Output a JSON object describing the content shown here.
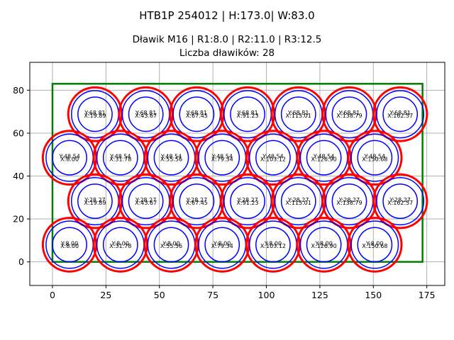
{
  "header": {
    "title": "HTB1P 254012 | H:173.0| W:83.0",
    "subtitle": "Dławik M16 | R1:8.0 | R2:11.0 | R3:12.5",
    "count_line": "Liczba dławików: 28"
  },
  "chart_data": {
    "type": "scatter",
    "title": "HTB1P 254012 | H:173.0| W:83.0",
    "subtitle": "Dławik M16 | R1:8.0 | R2:11.0 | R3:12.5",
    "annotation": "Liczba dławików: 28",
    "panel": {
      "name": "HTB1P 254012",
      "h_mm": 173.0,
      "w_mm": 83.0
    },
    "gland": {
      "label": "M16",
      "r1": 8.0,
      "r2": 11.0,
      "r3": 12.5,
      "count": 28
    },
    "rect": {
      "x": 0,
      "y": 0,
      "w": 173.0,
      "h": 83.0
    },
    "xlim": [
      -10.6,
      183.4
    ],
    "ylim": [
      -11.0,
      93.0
    ],
    "x_ticks": [
      0,
      25,
      50,
      75,
      100,
      125,
      150,
      175
    ],
    "y_ticks": [
      0,
      20,
      40,
      60,
      80
    ],
    "grid": true,
    "legend": "none",
    "colors": {
      "outer_circle": "#ff0000",
      "inner_circles": "#0000ff",
      "panel_outline": "#008000",
      "grid": "#b0b0b0",
      "frame": "#000000",
      "label_text": "#000000"
    },
    "label_format": {
      "y_prefix": "Y:",
      "x_prefix": "X:"
    },
    "points": [
      {
        "x": 19.89,
        "y": 68.81
      },
      {
        "x": 43.67,
        "y": 68.81
      },
      {
        "x": 67.45,
        "y": 68.81
      },
      {
        "x": 91.23,
        "y": 68.81
      },
      {
        "x": 115.01,
        "y": 68.81
      },
      {
        "x": 138.79,
        "y": 68.81
      },
      {
        "x": 162.57,
        "y": 68.81
      },
      {
        "x": 8.0,
        "y": 48.54
      },
      {
        "x": 31.78,
        "y": 48.54
      },
      {
        "x": 55.56,
        "y": 48.54
      },
      {
        "x": 79.34,
        "y": 48.54
      },
      {
        "x": 103.12,
        "y": 48.54
      },
      {
        "x": 126.9,
        "y": 48.54
      },
      {
        "x": 150.68,
        "y": 48.54
      },
      {
        "x": 19.89,
        "y": 28.27
      },
      {
        "x": 43.67,
        "y": 28.27
      },
      {
        "x": 67.45,
        "y": 28.27
      },
      {
        "x": 91.23,
        "y": 28.27
      },
      {
        "x": 115.01,
        "y": 28.27
      },
      {
        "x": 138.79,
        "y": 28.27
      },
      {
        "x": 162.57,
        "y": 28.27
      },
      {
        "x": 8.0,
        "y": 8.0
      },
      {
        "x": 31.78,
        "y": 8.0
      },
      {
        "x": 55.56,
        "y": 8.0
      },
      {
        "x": 79.34,
        "y": 8.0
      },
      {
        "x": 103.12,
        "y": 8.0
      },
      {
        "x": 126.9,
        "y": 8.0
      },
      {
        "x": 150.68,
        "y": 8.0
      }
    ]
  }
}
